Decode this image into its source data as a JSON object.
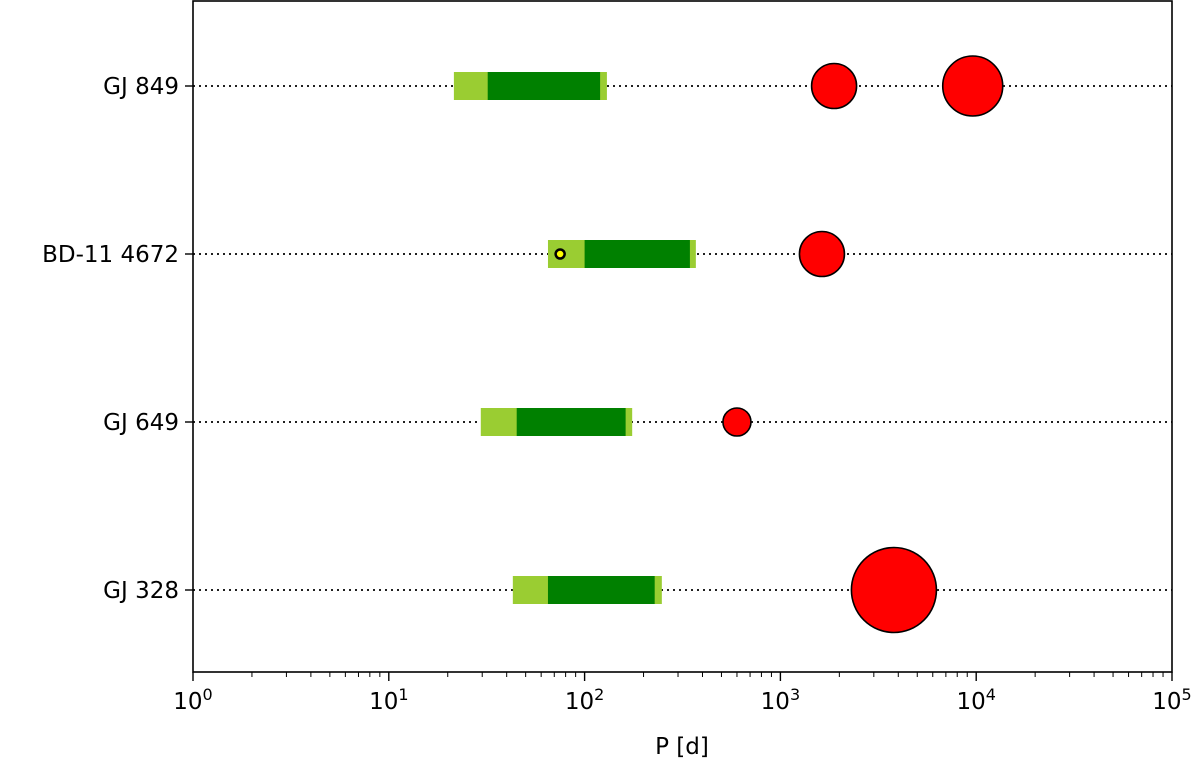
{
  "chart_data": {
    "type": "scatter",
    "title": "",
    "xlabel": "P [d]",
    "ylabel": "",
    "xscale": "log",
    "xlim": [
      1,
      100000
    ],
    "x_ticks": [
      {
        "base": "10",
        "exp": "0"
      },
      {
        "base": "10",
        "exp": "1"
      },
      {
        "base": "10",
        "exp": "2"
      },
      {
        "base": "10",
        "exp": "3"
      },
      {
        "base": "10",
        "exp": "4"
      },
      {
        "base": "10",
        "exp": "5"
      }
    ],
    "grid": false,
    "rows": [
      "GJ 849",
      "BD-11 4672",
      "GJ 649",
      "GJ 328"
    ],
    "colors": {
      "optimistic_zone": "#9acd32",
      "conservative_zone": "#008000",
      "planet": "#ff0000",
      "small_planet": "#ffff00",
      "guide_line": "#000000"
    },
    "habitable_zones": [
      {
        "star": "GJ 849",
        "outer_min": 21.5,
        "inner_min": 32,
        "inner_max": 120,
        "outer_max": 130
      },
      {
        "star": "BD-11 4672",
        "outer_min": 65,
        "inner_min": 100,
        "inner_max": 345,
        "outer_max": 370
      },
      {
        "star": "GJ 649",
        "outer_min": 29.5,
        "inner_min": 45,
        "inner_max": 162,
        "outer_max": 175
      },
      {
        "star": "GJ 328",
        "outer_min": 43,
        "inner_min": 65,
        "inner_max": 228,
        "outer_max": 248
      }
    ],
    "planets": [
      {
        "star": "GJ 849",
        "period": 1880,
        "size": 0.45,
        "color": "#ff0000"
      },
      {
        "star": "GJ 849",
        "period": 9600,
        "size": 0.6,
        "color": "#ff0000"
      },
      {
        "star": "BD-11 4672",
        "period": 1630,
        "size": 0.45,
        "color": "#ff0000"
      },
      {
        "star": "BD-11 4672",
        "period": 75,
        "size": 0.09,
        "color": "#ffff00"
      },
      {
        "star": "GJ 649",
        "period": 600,
        "size": 0.28,
        "color": "#ff0000"
      },
      {
        "star": "GJ 328",
        "period": 3800,
        "size": 0.85,
        "color": "#ff0000"
      }
    ]
  }
}
